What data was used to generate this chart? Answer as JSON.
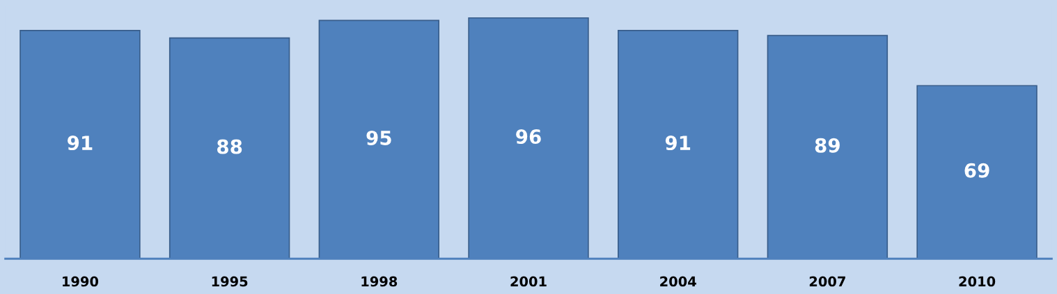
{
  "chart_data": {
    "type": "bar",
    "categories": [
      "1990",
      "1995",
      "1998",
      "2001",
      "2004",
      "2007",
      "2010"
    ],
    "values": [
      91,
      88,
      95,
      96,
      91,
      89,
      69
    ],
    "color": "#4f81bd",
    "data_labels": true
  }
}
